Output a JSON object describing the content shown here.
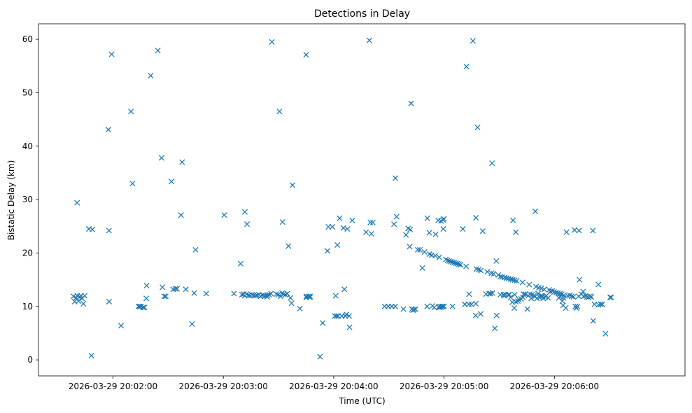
{
  "chart_data": {
    "type": "scatter",
    "title": "Detections in Delay",
    "xlabel": "Time (UTC)",
    "ylabel": "Bistatic Delay (km)",
    "x_unit": "seconds since 2026-03-29 20:00:00 UTC",
    "xlim": [
      79.5,
      431.0
    ],
    "ylim": [
      -3.0,
      62.9
    ],
    "marker": "x",
    "color": "#1f77b4",
    "grid": false,
    "x_ticks": [
      {
        "value": 120,
        "label": "2026-03-29 20:02:00"
      },
      {
        "value": 180,
        "label": "2026-03-29 20:03:00"
      },
      {
        "value": 240,
        "label": "2026-03-29 20:04:00"
      },
      {
        "value": 300,
        "label": "2026-03-29 20:05:00"
      },
      {
        "value": 360,
        "label": "2026-03-29 20:06:00"
      }
    ],
    "y_ticks": [
      {
        "value": 0,
        "label": "0"
      },
      {
        "value": 10,
        "label": "10"
      },
      {
        "value": 20,
        "label": "20"
      },
      {
        "value": 30,
        "label": "30"
      },
      {
        "value": 40,
        "label": "40"
      },
      {
        "value": 50,
        "label": "50"
      },
      {
        "value": 60,
        "label": "60"
      }
    ],
    "series": [
      {
        "name": "detections",
        "points": [
          [
            98.5,
            11.9
          ],
          [
            99.2,
            10.9
          ],
          [
            99.9,
            11.6
          ],
          [
            100.6,
            12.0
          ],
          [
            101.2,
            11.0
          ],
          [
            101.9,
            11.8
          ],
          [
            102.6,
            12.0
          ],
          [
            103.2,
            11.5
          ],
          [
            103.9,
            10.5
          ],
          [
            104.6,
            12.0
          ],
          [
            100.5,
            29.4
          ],
          [
            106.9,
            24.5
          ],
          [
            108.8,
            24.4
          ],
          [
            108.3,
            0.8
          ],
          [
            117.8,
            24.2
          ],
          [
            117.9,
            10.9
          ],
          [
            117.5,
            43.1
          ],
          [
            119.3,
            57.2
          ],
          [
            124.4,
            6.4
          ],
          [
            129.8,
            46.5
          ],
          [
            130.6,
            33.0
          ],
          [
            133.9,
            10.0
          ],
          [
            134.5,
            10.0
          ],
          [
            135.3,
            10.0
          ],
          [
            136.4,
            9.8
          ],
          [
            137.1,
            9.8
          ],
          [
            138.1,
            11.5
          ],
          [
            138.3,
            13.9
          ],
          [
            140.5,
            53.2
          ],
          [
            144.4,
            57.9
          ],
          [
            146.4,
            37.8
          ],
          [
            146.9,
            13.6
          ],
          [
            147.9,
            11.9
          ],
          [
            148.7,
            11.9
          ],
          [
            151.8,
            33.4
          ],
          [
            152.7,
            13.2
          ],
          [
            153.9,
            13.3
          ],
          [
            154.8,
            13.3
          ],
          [
            157.0,
            27.1
          ],
          [
            157.6,
            37.0
          ],
          [
            159.6,
            13.2
          ],
          [
            163.0,
            6.7
          ],
          [
            164.2,
            12.5
          ],
          [
            164.9,
            20.6
          ],
          [
            170.7,
            12.4
          ],
          [
            180.5,
            27.1
          ],
          [
            185.8,
            12.4
          ],
          [
            189.4,
            18.0
          ],
          [
            190.1,
            12.2
          ],
          [
            191.0,
            12.3
          ],
          [
            191.7,
            27.7
          ],
          [
            192.9,
            25.4
          ],
          [
            191.6,
            12.0
          ],
          [
            192.6,
            12.3
          ],
          [
            193.6,
            12.1
          ],
          [
            194.5,
            12.0
          ],
          [
            195.5,
            12.2
          ],
          [
            196.4,
            12.1
          ],
          [
            197.4,
            12.0
          ],
          [
            198.3,
            12.1
          ],
          [
            199.3,
            12.2
          ],
          [
            200.2,
            11.9
          ],
          [
            201.2,
            12.1
          ],
          [
            202.1,
            12.0
          ],
          [
            203.1,
            12.0
          ],
          [
            204.0,
            12.1
          ],
          [
            204.9,
            12.2
          ],
          [
            203.8,
            11.8
          ],
          [
            205.9,
            12.4
          ],
          [
            206.4,
            59.5
          ],
          [
            208.8,
            12.3
          ],
          [
            209.8,
            12.2
          ],
          [
            210.5,
            46.5
          ],
          [
            211.2,
            11.9
          ],
          [
            211.9,
            12.5
          ],
          [
            212.8,
            12.3
          ],
          [
            212.2,
            25.8
          ],
          [
            213.8,
            12.2
          ],
          [
            214.8,
            12.4
          ],
          [
            215.4,
            21.3
          ],
          [
            216.5,
            11.6
          ],
          [
            217.1,
            10.6
          ],
          [
            217.6,
            32.7
          ],
          [
            221.6,
            9.6
          ],
          [
            225.0,
            57.1
          ],
          [
            225.2,
            11.9
          ],
          [
            226.2,
            11.9
          ],
          [
            227.1,
            11.9
          ],
          [
            225.1,
            11.7
          ],
          [
            227.1,
            11.7
          ],
          [
            232.6,
            0.6
          ],
          [
            234.0,
            6.9
          ],
          [
            236.6,
            20.4
          ],
          [
            237.1,
            24.9
          ],
          [
            239.3,
            24.9
          ],
          [
            240.6,
            8.2
          ],
          [
            241.1,
            12.0
          ],
          [
            241.5,
            8.2
          ],
          [
            242.4,
            8.2
          ],
          [
            242.0,
            21.5
          ],
          [
            243.2,
            26.5
          ],
          [
            244.4,
            8.2
          ],
          [
            245.3,
            24.7
          ],
          [
            245.8,
            13.2
          ],
          [
            246.4,
            8.2
          ],
          [
            246.9,
            8.5
          ],
          [
            247.4,
            24.5
          ],
          [
            248.4,
            8.2
          ],
          [
            248.6,
            6.1
          ],
          [
            250.1,
            26.1
          ],
          [
            257.6,
            23.9
          ],
          [
            259.4,
            59.8
          ],
          [
            259.9,
            25.7
          ],
          [
            260.5,
            23.6
          ],
          [
            261.3,
            25.7
          ],
          [
            267.7,
            10.0
          ],
          [
            269.7,
            10.0
          ],
          [
            271.6,
            10.0
          ],
          [
            272.8,
            25.4
          ],
          [
            273.5,
            34.0
          ],
          [
            274.2,
            26.8
          ],
          [
            273.5,
            10.0
          ],
          [
            277.9,
            9.5
          ],
          [
            279.3,
            23.4
          ],
          [
            280.5,
            24.6
          ],
          [
            281.6,
            24.4
          ],
          [
            281.3,
            21.2
          ],
          [
            282.1,
            48.0
          ],
          [
            282.5,
            9.5
          ],
          [
            283.1,
            9.3
          ],
          [
            283.7,
            9.4
          ],
          [
            284.5,
            9.5
          ],
          [
            285.7,
            20.6
          ],
          [
            286.9,
            20.6
          ],
          [
            288.2,
            17.2
          ],
          [
            289.4,
            20.2
          ],
          [
            290.9,
            26.5
          ],
          [
            292.1,
            19.8
          ],
          [
            292.0,
            23.8
          ],
          [
            293.3,
            19.6
          ],
          [
            293.7,
            10.1
          ],
          [
            294.7,
            9.8
          ],
          [
            295.4,
            23.5
          ],
          [
            295.2,
            19.5
          ],
          [
            296.8,
            26.1
          ],
          [
            297.1,
            9.9
          ],
          [
            297.4,
            19.2
          ],
          [
            297.4,
            9.8
          ],
          [
            298.4,
            26.0
          ],
          [
            298.3,
            9.9
          ],
          [
            298.9,
            10.0
          ],
          [
            299.2,
            10.0
          ],
          [
            299.5,
            26.2
          ],
          [
            299.9,
            26.4
          ],
          [
            299.6,
            24.5
          ],
          [
            300.0,
            10.0
          ],
          [
            290.8,
            10.0
          ],
          [
            297.8,
            10.0
          ],
          [
            301.0,
            18.8
          ],
          [
            301.9,
            18.6
          ],
          [
            302.8,
            18.5
          ],
          [
            303.7,
            18.4
          ],
          [
            304.6,
            10.0
          ],
          [
            304.6,
            18.3
          ],
          [
            305.5,
            18.2
          ],
          [
            306.4,
            18.1
          ],
          [
            307.2,
            18.0
          ],
          [
            308.1,
            17.9
          ],
          [
            309.0,
            17.8
          ],
          [
            310.2,
            24.5
          ],
          [
            311.3,
            10.4
          ],
          [
            312.0,
            17.5
          ],
          [
            312.2,
            54.9
          ],
          [
            313.6,
            12.3
          ],
          [
            313.5,
            10.4
          ],
          [
            314.9,
            10.4
          ],
          [
            315.7,
            59.7
          ],
          [
            317.2,
            8.3
          ],
          [
            317.3,
            10.5
          ],
          [
            317.3,
            26.6
          ],
          [
            317.6,
            17.0
          ],
          [
            318.2,
            43.5
          ],
          [
            318.8,
            16.9
          ],
          [
            319.9,
            8.6
          ],
          [
            320.0,
            16.7
          ],
          [
            321.0,
            24.1
          ],
          [
            322.8,
            12.3
          ],
          [
            323.5,
            16.5
          ],
          [
            324.5,
            12.4
          ],
          [
            325.3,
            12.4
          ],
          [
            326.3,
            12.5
          ],
          [
            325.7,
            16.2
          ],
          [
            326.1,
            36.8
          ],
          [
            326.9,
            16.1
          ],
          [
            327.6,
            5.9
          ],
          [
            328.4,
            18.5
          ],
          [
            328.6,
            8.3
          ],
          [
            329.5,
            15.9
          ],
          [
            330.6,
            15.6
          ],
          [
            330.6,
            12.2
          ],
          [
            331.5,
            15.5
          ],
          [
            332.4,
            12.2
          ],
          [
            332.6,
            12.0
          ],
          [
            332.9,
            15.4
          ],
          [
            333.5,
            12.2
          ],
          [
            334.0,
            15.3
          ],
          [
            335.0,
            12.2
          ],
          [
            335.1,
            15.2
          ],
          [
            335.4,
            12.2
          ],
          [
            336.2,
            11.7
          ],
          [
            336.3,
            15.1
          ],
          [
            337.1,
            10.8
          ],
          [
            337.3,
            15.0
          ],
          [
            337.5,
            26.1
          ],
          [
            338.2,
            9.7
          ],
          [
            338.4,
            14.9
          ],
          [
            338.4,
            12.2
          ],
          [
            339.0,
            10.9
          ],
          [
            339.0,
            23.9
          ],
          [
            339.5,
            14.8
          ],
          [
            340.1,
            11.0
          ],
          [
            340.7,
            11.3
          ],
          [
            341.9,
            11.4
          ],
          [
            342.7,
            14.5
          ],
          [
            342.9,
            11.7
          ],
          [
            343.2,
            12.3
          ],
          [
            344.1,
            12.3
          ],
          [
            345.3,
            9.5
          ],
          [
            345.8,
            12.0
          ],
          [
            346.3,
            14.1
          ],
          [
            346.6,
            12.3
          ],
          [
            347.4,
            11.5
          ],
          [
            347.8,
            12.2
          ],
          [
            348.8,
            12.0
          ],
          [
            349.6,
            27.8
          ],
          [
            349.5,
            11.9
          ],
          [
            350.0,
            13.7
          ],
          [
            350.5,
            11.5
          ],
          [
            351.5,
            13.5
          ],
          [
            351.1,
            12.4
          ],
          [
            352.1,
            11.7
          ],
          [
            352.8,
            12.0
          ],
          [
            352.9,
            13.4
          ],
          [
            353.6,
            11.9
          ],
          [
            353.9,
            11.5
          ],
          [
            354.5,
            13.2
          ],
          [
            355.0,
            11.8
          ],
          [
            355.6,
            12.0
          ],
          [
            356.6,
            11.6
          ],
          [
            357.2,
            13.1
          ],
          [
            357.8,
            12.8
          ],
          [
            358.8,
            12.9
          ],
          [
            359.8,
            12.7
          ],
          [
            360.9,
            12.6
          ],
          [
            361.9,
            12.5
          ],
          [
            362.4,
            11.6
          ],
          [
            363.0,
            12.4
          ],
          [
            364.0,
            12.3
          ],
          [
            363.1,
            11.8
          ],
          [
            365.0,
            11.6
          ],
          [
            364.3,
            11.0
          ],
          [
            364.7,
            10.2
          ],
          [
            365.2,
            12.1
          ],
          [
            366.2,
            9.7
          ],
          [
            366.6,
            23.9
          ],
          [
            367.3,
            12.0
          ],
          [
            368.4,
            12.1
          ],
          [
            369.4,
            11.9
          ],
          [
            370.3,
            11.8
          ],
          [
            370.9,
            24.3
          ],
          [
            371.4,
            10.0
          ],
          [
            372.0,
            9.7
          ],
          [
            372.5,
            10.0
          ],
          [
            373.2,
            11.9
          ],
          [
            373.6,
            15.0
          ],
          [
            373.4,
            24.2
          ],
          [
            374.6,
            12.3
          ],
          [
            375.6,
            12.8
          ],
          [
            375.9,
            11.9
          ],
          [
            377.0,
            12.0
          ],
          [
            377.7,
            11.8
          ],
          [
            378.5,
            11.7
          ],
          [
            379.3,
            11.9
          ],
          [
            380.1,
            11.8
          ],
          [
            380.9,
            24.2
          ],
          [
            381.1,
            7.3
          ],
          [
            381.8,
            10.4
          ],
          [
            383.9,
            14.1
          ],
          [
            384.0,
            10.3
          ],
          [
            385.2,
            10.4
          ],
          [
            386.0,
            10.4
          ],
          [
            387.8,
            4.9
          ],
          [
            390.3,
            11.7
          ],
          [
            390.8,
            11.7
          ]
        ]
      }
    ]
  }
}
